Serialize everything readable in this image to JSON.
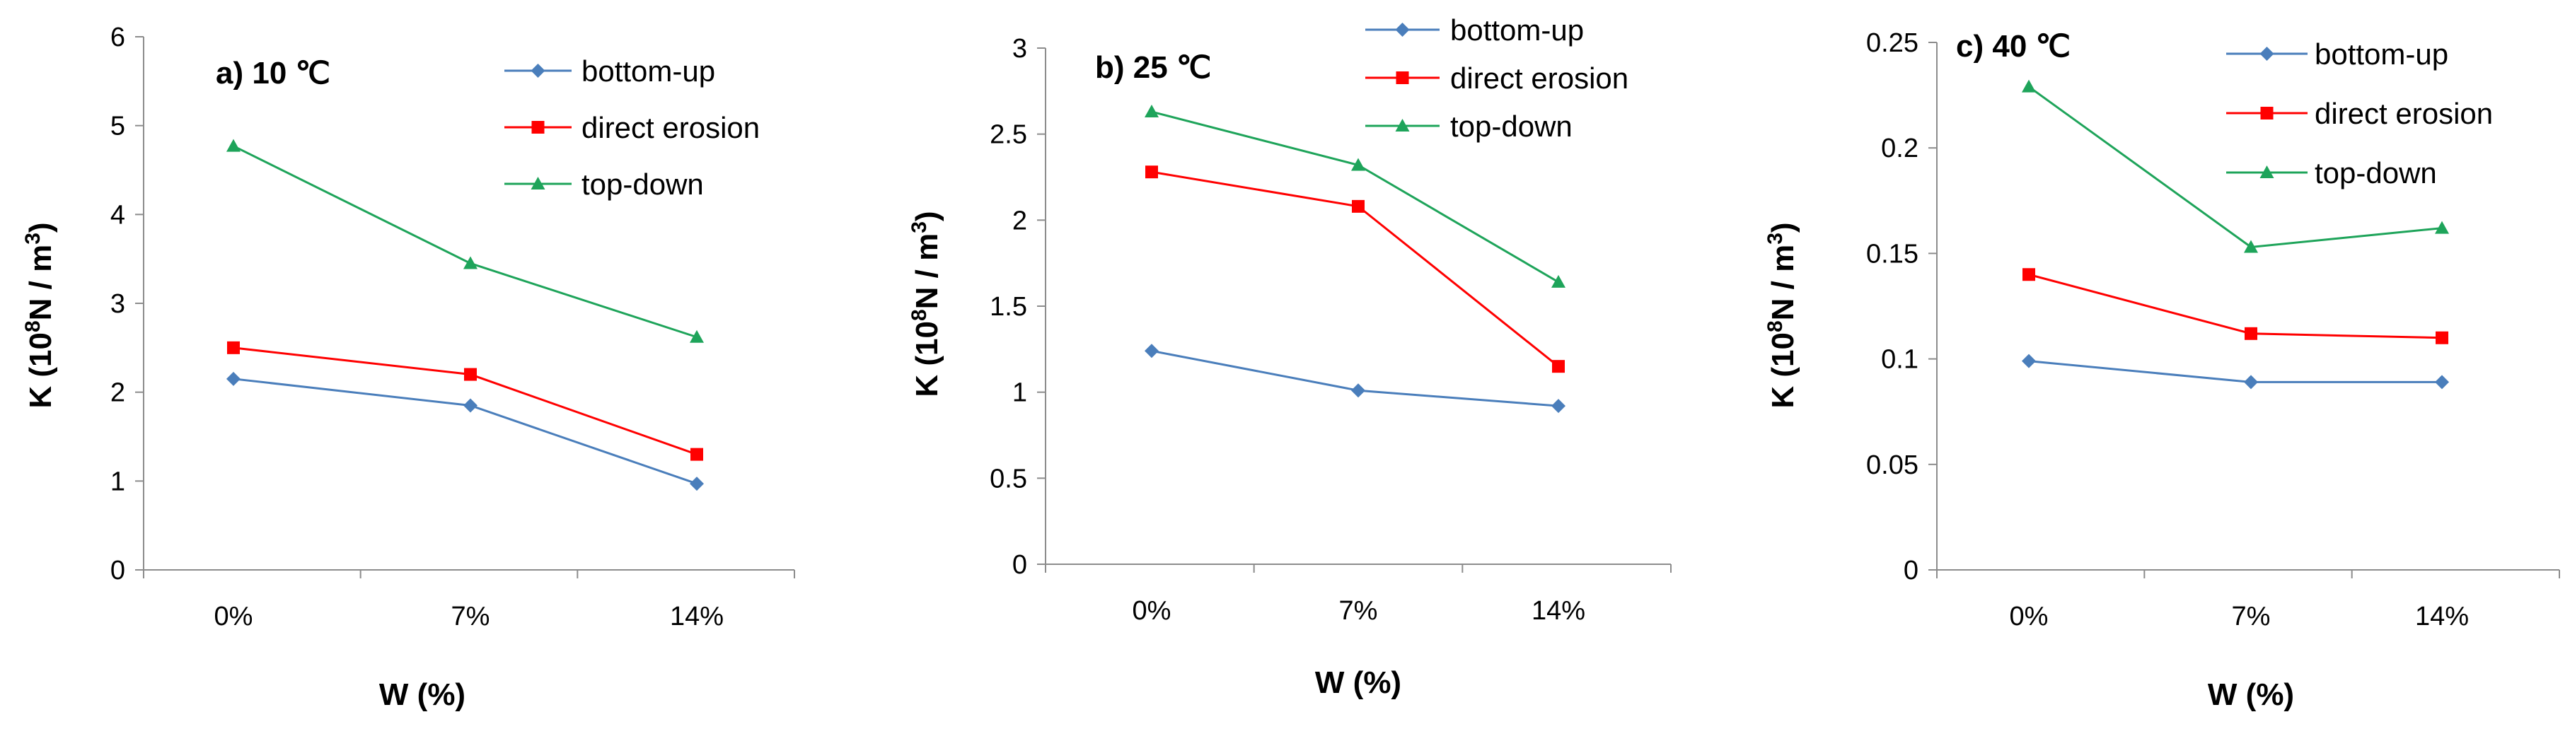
{
  "chart_data": [
    {
      "type": "line",
      "title": "a) 10 ℃",
      "xlabel": "W (%)",
      "ylabel_main": "K (10",
      "ylabel_sup1": "8",
      "ylabel_mid": "N / m",
      "ylabel_sup2": "3",
      "ylabel_end": ")",
      "categories": [
        "0%",
        "7%",
        "14%"
      ],
      "ylim": [
        0,
        6
      ],
      "yticks": [
        "0",
        "1",
        "2",
        "3",
        "4",
        "5",
        "6"
      ],
      "legend_position": "top-right",
      "series": [
        {
          "name": "bottom-up",
          "values": [
            2.15,
            1.85,
            0.97
          ],
          "color": "#4a7ebb",
          "marker": "diamond"
        },
        {
          "name": "direct erosion",
          "values": [
            2.5,
            2.2,
            1.3
          ],
          "color": "#ff0000",
          "marker": "square"
        },
        {
          "name": "top-down",
          "values": [
            4.77,
            3.45,
            2.62
          ],
          "color": "#1ea45a",
          "marker": "triangle"
        }
      ]
    },
    {
      "type": "line",
      "title": "b) 25 ℃",
      "xlabel": "W (%)",
      "ylabel_main": "K (10",
      "ylabel_sup1": "8",
      "ylabel_mid": "N / m",
      "ylabel_sup2": "3",
      "ylabel_end": ")",
      "categories": [
        "0%",
        "7%",
        "14%"
      ],
      "ylim": [
        0,
        3
      ],
      "yticks": [
        "0",
        "0.5",
        "1",
        "1.5",
        "2",
        "2.5",
        "3"
      ],
      "legend_position": "top-right",
      "series": [
        {
          "name": "bottom-up",
          "values": [
            1.24,
            1.01,
            0.92
          ],
          "color": "#4a7ebb",
          "marker": "diamond"
        },
        {
          "name": "direct erosion",
          "values": [
            2.28,
            2.08,
            1.15
          ],
          "color": "#ff0000",
          "marker": "square"
        },
        {
          "name": "top-down",
          "values": [
            2.63,
            2.32,
            1.64
          ],
          "color": "#1ea45a",
          "marker": "triangle"
        }
      ]
    },
    {
      "type": "line",
      "title": "c) 40 ℃",
      "xlabel": "W (%)",
      "ylabel_main": "K (10",
      "ylabel_sup1": "8",
      "ylabel_mid": "N / m",
      "ylabel_sup2": "3",
      "ylabel_end": ")",
      "categories": [
        "0%",
        "7%",
        "14%"
      ],
      "ylim": [
        0,
        0.25
      ],
      "yticks": [
        "0",
        "0.05",
        "0.1",
        "0.15",
        "0.2",
        "0.25"
      ],
      "legend_position": "top-right",
      "series": [
        {
          "name": "bottom-up",
          "values": [
            0.099,
            0.089,
            0.089
          ],
          "color": "#4a7ebb",
          "marker": "diamond"
        },
        {
          "name": "direct erosion",
          "values": [
            0.14,
            0.112,
            0.11
          ],
          "color": "#ff0000",
          "marker": "square"
        },
        {
          "name": "top-down",
          "values": [
            0.229,
            0.153,
            0.162
          ],
          "color": "#1ea45a",
          "marker": "triangle"
        }
      ]
    }
  ]
}
